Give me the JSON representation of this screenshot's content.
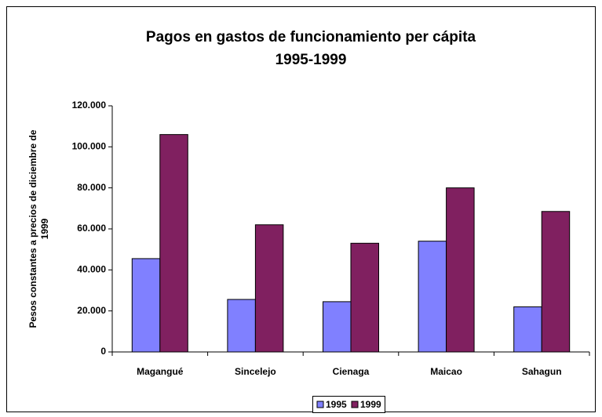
{
  "chart_data": {
    "type": "bar",
    "title": [
      "Pagos en gastos de funcionamiento per cápita",
      "1995-1999"
    ],
    "y_label": [
      "Pesos constantes a precios de diciembre de",
      "1999"
    ],
    "categories": [
      "Magangué",
      "Sincelejo",
      "Cienaga",
      "Maicao",
      "Sahagun"
    ],
    "series": [
      {
        "name": "1995",
        "color": "#8080ff",
        "values": [
          45500,
          25600,
          24500,
          54000,
          22000
        ]
      },
      {
        "name": "1999",
        "color": "#802060",
        "values": [
          106000,
          62000,
          53000,
          80000,
          68500
        ]
      }
    ],
    "ylim": [
      0,
      120000
    ],
    "yticks": [
      0,
      {
        "value": 20000,
        "label": "20.000"
      },
      {
        "value": 40000,
        "label": "40.000"
      },
      {
        "value": 60000,
        "label": "60.000"
      },
      {
        "value": 80000,
        "label": "80.000"
      },
      {
        "value": 100000,
        "label": "100.000"
      },
      {
        "value": 120000,
        "label": "120.000"
      }
    ],
    "grid": false,
    "legend": "bottom"
  }
}
